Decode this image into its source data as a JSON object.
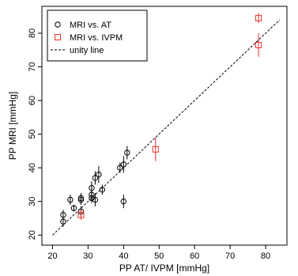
{
  "chart_data": {
    "type": "scatter",
    "xlabel": "PP AT/ IVPM [mmHg]",
    "ylabel": "PP MRI [mmHg]",
    "xlim": [
      17,
      86
    ],
    "ylim": [
      17,
      88
    ],
    "xticks": [
      20,
      30,
      40,
      50,
      60,
      70,
      80
    ],
    "yticks": [
      20,
      30,
      40,
      50,
      60,
      70,
      80
    ],
    "xtick_labels": [
      "20",
      "30",
      "40",
      "50",
      "60",
      "70",
      "80"
    ],
    "ytick_labels": [
      "20",
      "30",
      "40",
      "50",
      "60",
      "70",
      "80"
    ],
    "grid": false,
    "legend_position": "top-left",
    "legend": [
      {
        "label": "MRI vs. AT",
        "marker": "circle",
        "color": "#000000"
      },
      {
        "label": "MRI vs. IVPM",
        "marker": "square",
        "color": "#e8312a"
      },
      {
        "label": "unity line",
        "marker": "dashed-line",
        "color": "#000000"
      }
    ],
    "series": [
      {
        "name": "MRI vs. AT",
        "marker": "circle",
        "color": "#000000",
        "points": [
          {
            "x": 23,
            "y": 24,
            "err": 1.5
          },
          {
            "x": 23,
            "y": 26,
            "err": 1.5
          },
          {
            "x": 25,
            "y": 30.5,
            "err": 1.5
          },
          {
            "x": 26,
            "y": 28,
            "err": 1.0
          },
          {
            "x": 28,
            "y": 30.5,
            "err": 1.5
          },
          {
            "x": 28,
            "y": 31,
            "err": 1.5
          },
          {
            "x": 28,
            "y": 27,
            "err": 1.5
          },
          {
            "x": 31,
            "y": 31,
            "err": 1.5
          },
          {
            "x": 31,
            "y": 32,
            "err": 2.0
          },
          {
            "x": 31,
            "y": 34,
            "err": 2.0
          },
          {
            "x": 32,
            "y": 30.5,
            "err": 2.0
          },
          {
            "x": 32,
            "y": 37,
            "err": 2.0
          },
          {
            "x": 33,
            "y": 38,
            "err": 2.5
          },
          {
            "x": 34,
            "y": 33.5,
            "err": 1.5
          },
          {
            "x": 39,
            "y": 40,
            "err": 1.5
          },
          {
            "x": 40,
            "y": 41,
            "err": 2.5
          },
          {
            "x": 41,
            "y": 44.5,
            "err": 2.0
          },
          {
            "x": 40,
            "y": 30,
            "err": 2.0
          }
        ]
      },
      {
        "name": "MRI vs. IVPM",
        "marker": "square",
        "color": "#e8312a",
        "points": [
          {
            "x": 28,
            "y": 26,
            "err": 1.5
          },
          {
            "x": 49,
            "y": 45.5,
            "err": 3.5
          },
          {
            "x": 78,
            "y": 84.5,
            "err": 1.5
          },
          {
            "x": 78,
            "y": 76.5,
            "err": 3.5
          }
        ]
      },
      {
        "name": "unity line",
        "type": "line",
        "style": "dashed",
        "color": "#000000",
        "x": [
          20,
          84
        ],
        "y": [
          20,
          84
        ]
      }
    ]
  }
}
